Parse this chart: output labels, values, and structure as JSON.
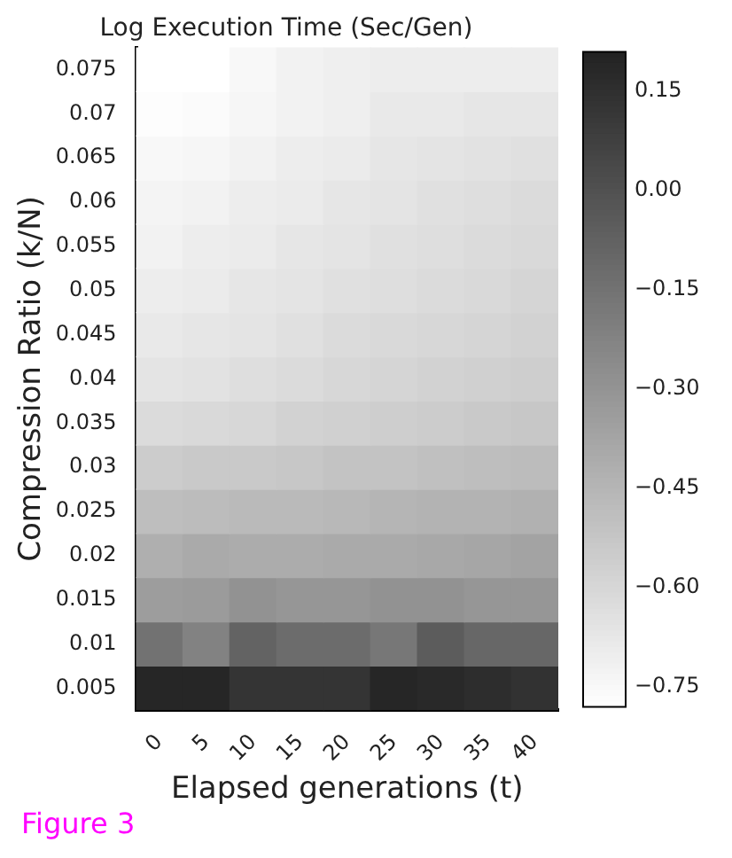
{
  "chart_data": {
    "type": "heatmap",
    "title": "Log Execution Time (Sec/Gen)",
    "xlabel": "Elapsed generations (t)",
    "ylabel": "Compression Ratio (k/N)",
    "categories": [
      "0",
      "5",
      "10",
      "15",
      "20",
      "25",
      "30",
      "35",
      "40"
    ],
    "y_categories": [
      "0.075",
      "0.07",
      "0.065",
      "0.06",
      "0.055",
      "0.05",
      "0.045",
      "0.04",
      "0.035",
      "0.03",
      "0.025",
      "0.02",
      "0.015",
      "0.01",
      "0.005"
    ],
    "cells": [
      [
        -0.78,
        -0.78,
        -0.75,
        -0.72,
        -0.71,
        -0.7,
        -0.7,
        -0.7,
        -0.7
      ],
      [
        -0.77,
        -0.76,
        -0.74,
        -0.72,
        -0.71,
        -0.68,
        -0.68,
        -0.67,
        -0.67
      ],
      [
        -0.75,
        -0.74,
        -0.72,
        -0.7,
        -0.69,
        -0.67,
        -0.66,
        -0.65,
        -0.64
      ],
      [
        -0.73,
        -0.72,
        -0.7,
        -0.69,
        -0.67,
        -0.66,
        -0.64,
        -0.63,
        -0.62
      ],
      [
        -0.72,
        -0.7,
        -0.69,
        -0.67,
        -0.66,
        -0.64,
        -0.63,
        -0.62,
        -0.61
      ],
      [
        -0.7,
        -0.69,
        -0.67,
        -0.66,
        -0.64,
        -0.63,
        -0.62,
        -0.61,
        -0.59
      ],
      [
        -0.68,
        -0.67,
        -0.66,
        -0.64,
        -0.62,
        -0.61,
        -0.6,
        -0.59,
        -0.58
      ],
      [
        -0.66,
        -0.65,
        -0.63,
        -0.62,
        -0.6,
        -0.59,
        -0.58,
        -0.57,
        -0.56
      ],
      [
        -0.62,
        -0.61,
        -0.6,
        -0.58,
        -0.57,
        -0.56,
        -0.55,
        -0.54,
        -0.53
      ],
      [
        -0.55,
        -0.54,
        -0.54,
        -0.53,
        -0.51,
        -0.51,
        -0.5,
        -0.49,
        -0.48
      ],
      [
        -0.49,
        -0.48,
        -0.47,
        -0.47,
        -0.46,
        -0.45,
        -0.44,
        -0.44,
        -0.43
      ],
      [
        -0.42,
        -0.4,
        -0.41,
        -0.41,
        -0.4,
        -0.4,
        -0.39,
        -0.38,
        -0.37
      ],
      [
        -0.34,
        -0.33,
        -0.29,
        -0.31,
        -0.31,
        -0.29,
        -0.29,
        -0.31,
        -0.31
      ],
      [
        -0.15,
        -0.22,
        -0.08,
        -0.12,
        -0.12,
        -0.17,
        -0.05,
        -0.1,
        -0.1
      ],
      [
        0.19,
        0.19,
        0.13,
        0.13,
        0.13,
        0.19,
        0.18,
        0.16,
        0.14
      ]
    ],
    "clim": [
      -0.78,
      0.21
    ],
    "cticks": [
      {
        "value": 0.15,
        "label": "0.15"
      },
      {
        "value": 0,
        "label": "0.00"
      },
      {
        "value": -0.15,
        "label": "−0.15"
      },
      {
        "value": -0.3,
        "label": "−0.30"
      },
      {
        "value": -0.45,
        "label": "−0.45"
      },
      {
        "value": -0.6,
        "label": "−0.60"
      },
      {
        "value": -0.75,
        "label": "−0.75"
      }
    ],
    "annotations": [
      "Figure 3"
    ]
  }
}
